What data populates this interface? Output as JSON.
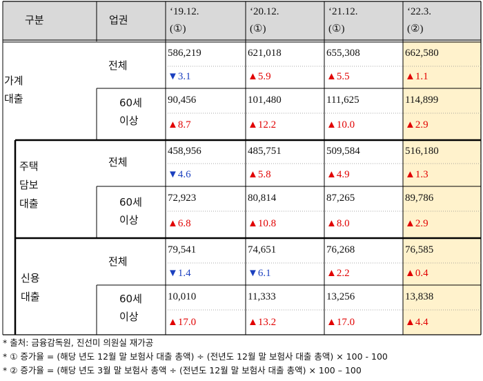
{
  "header": {
    "category": "구분",
    "sector": "업권",
    "col1_date": "‘19.12.",
    "col1_mark": "(①)",
    "col2_date": "‘20.12.",
    "col2_mark": "(①)",
    "col3_date": "‘21.12.",
    "col3_mark": "(①)",
    "col4_date": "‘22.3.",
    "col4_mark": "(②)"
  },
  "groups": {
    "household": "가계\n대출",
    "mortgage": "주택\n담보\n대출",
    "credit": "신용\n대출"
  },
  "labels": {
    "total": "전체",
    "over60": "60세\n이상"
  },
  "rows": [
    {
      "values": [
        "586,219",
        "621,018",
        "655,308",
        "662,580"
      ],
      "rates": [
        "▼3.1",
        "▲5.9",
        "▲5.5",
        "▲1.1"
      ],
      "dirs": [
        "down",
        "up",
        "up",
        "up"
      ]
    },
    {
      "values": [
        "90,456",
        "101,480",
        "111,625",
        "114,899"
      ],
      "rates": [
        "▲8.7",
        "▲12.2",
        "▲10.0",
        "▲2.9"
      ],
      "dirs": [
        "up",
        "up",
        "up",
        "up"
      ]
    },
    {
      "values": [
        "458,956",
        "485,751",
        "509,584",
        "516,180"
      ],
      "rates": [
        "▼4.6",
        "▲5.8",
        "▲4.9",
        "▲1.3"
      ],
      "dirs": [
        "down",
        "up",
        "up",
        "up"
      ]
    },
    {
      "values": [
        "72,923",
        "80,814",
        "87,265",
        "89,786"
      ],
      "rates": [
        "▲6.8",
        "▲10.8",
        "▲8.0",
        "▲2.9"
      ],
      "dirs": [
        "up",
        "up",
        "up",
        "up"
      ]
    },
    {
      "values": [
        "79,541",
        "74,651",
        "76,268",
        "76,585"
      ],
      "rates": [
        "▼1.4",
        "▼6.1",
        "▲2.2",
        "▲0.4"
      ],
      "dirs": [
        "down",
        "down",
        "up",
        "up"
      ]
    },
    {
      "values": [
        "10,010",
        "11,333",
        "13,256",
        "13,838"
      ],
      "rates": [
        "▲17.0",
        "▲13.2",
        "▲17.0",
        "▲4.4"
      ],
      "dirs": [
        "up",
        "up",
        "up",
        "up"
      ]
    }
  ],
  "notes": [
    "* 출처: 금융감독원, 진선미 의원실 재가공",
    "* ① 증가율 = (해당 년도 12월 말 보험사 대출 총액) ÷ (전년도 12월 말 보험사 대출 총액) × 100 - 100",
    "* ② 증가율 = (해당 년도 3월 말 보험사 총액 ÷ (전년도 12월 말 보험사 대출 총액) × 100 – 100"
  ],
  "colors": {
    "header_bg": "#d9d9d9",
    "highlight_bg": "#fff2cc",
    "up": "#e10000",
    "down": "#1a3fbf"
  }
}
